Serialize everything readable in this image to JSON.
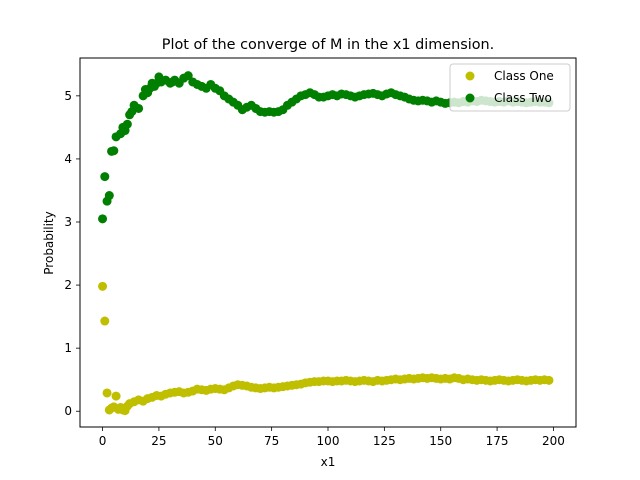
{
  "chart_data": {
    "type": "scatter",
    "title": "Plot of the converge of M in the x1 dimension.",
    "xlabel": "x1",
    "ylabel": "Probability",
    "xlim": [
      -10,
      210
    ],
    "ylim": [
      -0.25,
      5.6
    ],
    "xticks": [
      0,
      25,
      50,
      75,
      100,
      125,
      150,
      175,
      200
    ],
    "yticks": [
      0,
      1,
      2,
      3,
      4,
      5
    ],
    "grid": false,
    "legend_position": "top-right",
    "series": [
      {
        "name": "Class One",
        "color": "#bfbf00",
        "points": [
          [
            0,
            1.98
          ],
          [
            1,
            1.43
          ],
          [
            2,
            0.29
          ],
          [
            3,
            0.02
          ],
          [
            4,
            0.05
          ],
          [
            5,
            0.07
          ],
          [
            6,
            0.24
          ],
          [
            7,
            0.03
          ],
          [
            8,
            0.06
          ],
          [
            9,
            0.02
          ],
          [
            10,
            0.01
          ],
          [
            11,
            0.08
          ],
          [
            12,
            0.12
          ],
          [
            14,
            0.15
          ],
          [
            16,
            0.18
          ],
          [
            18,
            0.16
          ],
          [
            20,
            0.2
          ],
          [
            22,
            0.22
          ],
          [
            24,
            0.25
          ],
          [
            26,
            0.24
          ],
          [
            28,
            0.27
          ],
          [
            30,
            0.29
          ],
          [
            32,
            0.3
          ],
          [
            34,
            0.31
          ],
          [
            36,
            0.29
          ],
          [
            38,
            0.3
          ],
          [
            40,
            0.32
          ],
          [
            42,
            0.35
          ],
          [
            44,
            0.34
          ],
          [
            46,
            0.33
          ],
          [
            48,
            0.35
          ],
          [
            50,
            0.36
          ],
          [
            52,
            0.35
          ],
          [
            54,
            0.34
          ],
          [
            56,
            0.37
          ],
          [
            58,
            0.4
          ],
          [
            60,
            0.42
          ],
          [
            62,
            0.41
          ],
          [
            64,
            0.4
          ],
          [
            66,
            0.38
          ],
          [
            68,
            0.37
          ],
          [
            70,
            0.36
          ],
          [
            72,
            0.37
          ],
          [
            74,
            0.38
          ],
          [
            76,
            0.37
          ],
          [
            78,
            0.38
          ],
          [
            80,
            0.39
          ],
          [
            82,
            0.4
          ],
          [
            84,
            0.41
          ],
          [
            86,
            0.42
          ],
          [
            88,
            0.43
          ],
          [
            90,
            0.45
          ],
          [
            92,
            0.46
          ],
          [
            94,
            0.47
          ],
          [
            96,
            0.47
          ],
          [
            98,
            0.48
          ],
          [
            100,
            0.48
          ],
          [
            102,
            0.47
          ],
          [
            104,
            0.48
          ],
          [
            106,
            0.48
          ],
          [
            108,
            0.49
          ],
          [
            110,
            0.48
          ],
          [
            112,
            0.47
          ],
          [
            114,
            0.48
          ],
          [
            116,
            0.49
          ],
          [
            118,
            0.48
          ],
          [
            120,
            0.47
          ],
          [
            122,
            0.49
          ],
          [
            124,
            0.48
          ],
          [
            126,
            0.49
          ],
          [
            128,
            0.5
          ],
          [
            130,
            0.51
          ],
          [
            132,
            0.5
          ],
          [
            134,
            0.51
          ],
          [
            136,
            0.52
          ],
          [
            138,
            0.51
          ],
          [
            140,
            0.52
          ],
          [
            142,
            0.53
          ],
          [
            144,
            0.52
          ],
          [
            146,
            0.53
          ],
          [
            148,
            0.52
          ],
          [
            150,
            0.51
          ],
          [
            152,
            0.52
          ],
          [
            154,
            0.51
          ],
          [
            156,
            0.53
          ],
          [
            158,
            0.52
          ],
          [
            160,
            0.5
          ],
          [
            162,
            0.51
          ],
          [
            164,
            0.5
          ],
          [
            166,
            0.49
          ],
          [
            168,
            0.5
          ],
          [
            170,
            0.49
          ],
          [
            172,
            0.48
          ],
          [
            174,
            0.49
          ],
          [
            176,
            0.5
          ],
          [
            178,
            0.49
          ],
          [
            180,
            0.48
          ],
          [
            182,
            0.49
          ],
          [
            184,
            0.5
          ],
          [
            186,
            0.49
          ],
          [
            188,
            0.48
          ],
          [
            190,
            0.49
          ],
          [
            192,
            0.5
          ],
          [
            194,
            0.49
          ],
          [
            196,
            0.5
          ],
          [
            198,
            0.49
          ]
        ]
      },
      {
        "name": "Class Two",
        "color": "#007f00",
        "points": [
          [
            0,
            3.05
          ],
          [
            1,
            3.72
          ],
          [
            2,
            3.33
          ],
          [
            3,
            3.42
          ],
          [
            4,
            4.12
          ],
          [
            5,
            4.13
          ],
          [
            6,
            4.35
          ],
          [
            8,
            4.4
          ],
          [
            9,
            4.5
          ],
          [
            10,
            4.45
          ],
          [
            11,
            4.55
          ],
          [
            12,
            4.7
          ],
          [
            13,
            4.75
          ],
          [
            14,
            4.85
          ],
          [
            16,
            4.8
          ],
          [
            18,
            5.0
          ],
          [
            19,
            5.1
          ],
          [
            20,
            5.05
          ],
          [
            21,
            5.12
          ],
          [
            22,
            5.2
          ],
          [
            23,
            5.15
          ],
          [
            24,
            5.2
          ],
          [
            25,
            5.3
          ],
          [
            26,
            5.22
          ],
          [
            28,
            5.25
          ],
          [
            30,
            5.2
          ],
          [
            31,
            5.22
          ],
          [
            32,
            5.25
          ],
          [
            34,
            5.2
          ],
          [
            36,
            5.28
          ],
          [
            38,
            5.32
          ],
          [
            40,
            5.22
          ],
          [
            42,
            5.18
          ],
          [
            44,
            5.15
          ],
          [
            46,
            5.12
          ],
          [
            48,
            5.18
          ],
          [
            50,
            5.12
          ],
          [
            52,
            5.08
          ],
          [
            54,
            5.0
          ],
          [
            56,
            4.95
          ],
          [
            58,
            4.9
          ],
          [
            60,
            4.85
          ],
          [
            62,
            4.78
          ],
          [
            64,
            4.82
          ],
          [
            66,
            4.85
          ],
          [
            68,
            4.8
          ],
          [
            70,
            4.75
          ],
          [
            72,
            4.74
          ],
          [
            74,
            4.75
          ],
          [
            76,
            4.74
          ],
          [
            78,
            4.75
          ],
          [
            80,
            4.78
          ],
          [
            82,
            4.85
          ],
          [
            84,
            4.9
          ],
          [
            86,
            4.95
          ],
          [
            88,
            5.0
          ],
          [
            90,
            5.02
          ],
          [
            92,
            5.05
          ],
          [
            94,
            5.02
          ],
          [
            96,
            4.98
          ],
          [
            98,
            4.98
          ],
          [
            100,
            5.0
          ],
          [
            102,
            5.02
          ],
          [
            104,
            5.0
          ],
          [
            106,
            5.03
          ],
          [
            108,
            5.02
          ],
          [
            110,
            5.0
          ],
          [
            112,
            4.98
          ],
          [
            114,
            5.0
          ],
          [
            116,
            5.02
          ],
          [
            118,
            5.03
          ],
          [
            120,
            5.04
          ],
          [
            122,
            5.02
          ],
          [
            124,
            5.0
          ],
          [
            126,
            5.03
          ],
          [
            128,
            5.05
          ],
          [
            130,
            5.02
          ],
          [
            132,
            5.0
          ],
          [
            134,
            4.98
          ],
          [
            136,
            4.95
          ],
          [
            138,
            4.93
          ],
          [
            140,
            4.92
          ],
          [
            142,
            4.93
          ],
          [
            144,
            4.92
          ],
          [
            146,
            4.9
          ],
          [
            148,
            4.92
          ],
          [
            150,
            4.9
          ],
          [
            152,
            4.88
          ],
          [
            154,
            4.89
          ],
          [
            156,
            4.9
          ],
          [
            158,
            4.89
          ],
          [
            160,
            4.91
          ],
          [
            162,
            4.9
          ],
          [
            164,
            4.92
          ],
          [
            166,
            4.91
          ],
          [
            168,
            4.93
          ],
          [
            170,
            4.92
          ],
          [
            172,
            4.91
          ],
          [
            174,
            4.9
          ],
          [
            176,
            4.91
          ],
          [
            178,
            4.9
          ],
          [
            180,
            4.92
          ],
          [
            182,
            4.9
          ],
          [
            184,
            4.91
          ],
          [
            186,
            4.9
          ],
          [
            188,
            4.89
          ],
          [
            190,
            4.9
          ],
          [
            192,
            4.91
          ],
          [
            194,
            4.9
          ],
          [
            196,
            4.9
          ],
          [
            198,
            4.89
          ]
        ]
      }
    ]
  }
}
